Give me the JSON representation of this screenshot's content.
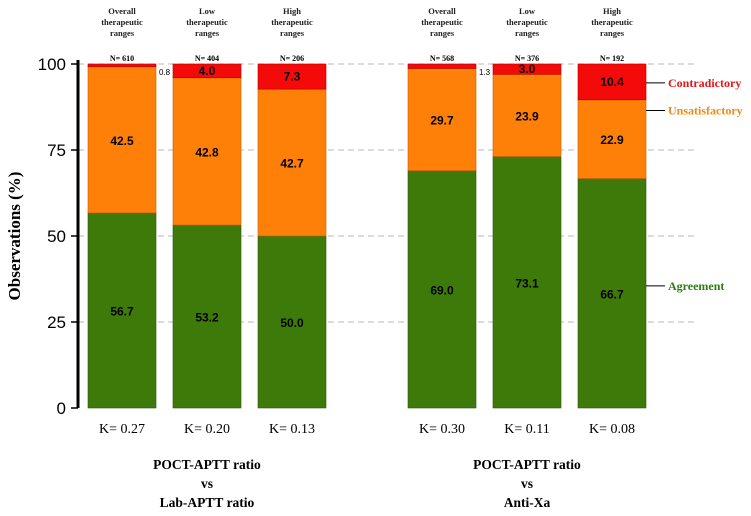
{
  "chart_data": {
    "type": "bar",
    "stacked": true,
    "title": "",
    "ylabel": "Observations (%)",
    "xlabel": "",
    "ylim": [
      0,
      100
    ],
    "yticks": [
      0,
      25,
      50,
      75,
      100
    ],
    "grid": "dashed horizontal at 25, 50, 75, 100",
    "colors": {
      "agreement": "#3d7a0a",
      "unsatisfactory": "#ff8008",
      "contradictory": "#f50a0a",
      "axis": "#000000",
      "grid": "#b8b8b8"
    },
    "legend": [
      {
        "key": "contradictory",
        "label": "Contradictory",
        "color": "#e8141a",
        "at_value": 94.5
      },
      {
        "key": "unsatisfactory",
        "label": "Unsatisfactory",
        "color": "#ee8a10",
        "at_value": 86.5
      },
      {
        "key": "agreement",
        "label": "Agreement",
        "color": "#2f7d10",
        "at_value": 35.5
      }
    ],
    "groups": [
      {
        "label_line1": "POCT-APTT ratio",
        "label_line2": "vs",
        "label_line3": "Lab-APTT ratio",
        "bars": [
          {
            "category_line1": "Overall",
            "category_line2": "therapeutic",
            "category_line3": "ranges",
            "n": "N= 610",
            "agreement": 56.7,
            "unsatisfactory": 42.5,
            "contradictory": 0.8,
            "label_agreement": "56.7",
            "label_unsatisfactory": "42.5",
            "label_contradictory": "0.8",
            "contradictory_label_outside": true,
            "kappa": "K= 0.27"
          },
          {
            "category_line1": "Low",
            "category_line2": "therapeutic",
            "category_line3": "ranges",
            "n": "N= 404",
            "agreement": 53.2,
            "unsatisfactory": 42.8,
            "contradictory": 4.0,
            "label_agreement": "53.2",
            "label_unsatisfactory": "42.8",
            "label_contradictory": "4.0",
            "contradictory_label_outside": false,
            "kappa": "K= 0.20"
          },
          {
            "category_line1": "High",
            "category_line2": "therapeutic",
            "category_line3": "ranges",
            "n": "N= 206",
            "agreement": 50.0,
            "unsatisfactory": 42.7,
            "contradictory": 7.3,
            "label_agreement": "50.0",
            "label_unsatisfactory": "42.7",
            "label_contradictory": "7.3",
            "contradictory_label_outside": false,
            "kappa": "K= 0.13"
          }
        ]
      },
      {
        "label_line1": "POCT-APTT ratio",
        "label_line2": "vs",
        "label_line3": "Anti-Xa",
        "bars": [
          {
            "category_line1": "Overall",
            "category_line2": "therapeutic",
            "category_line3": "ranges",
            "n": "N= 568",
            "agreement": 69.0,
            "unsatisfactory": 29.7,
            "contradictory": 1.3,
            "label_agreement": "69.0",
            "label_unsatisfactory": "29.7",
            "label_contradictory": "1.3",
            "contradictory_label_outside": true,
            "kappa": "K= 0.30"
          },
          {
            "category_line1": "Low",
            "category_line2": "therapeutic",
            "category_line3": "ranges",
            "n": "N= 376",
            "agreement": 73.1,
            "unsatisfactory": 23.9,
            "contradictory": 3.0,
            "label_agreement": "73.1",
            "label_unsatisfactory": "23.9",
            "label_contradictory": "3.0",
            "contradictory_label_outside": false,
            "kappa": "K= 0.11"
          },
          {
            "category_line1": "High",
            "category_line2": "therapeutic",
            "category_line3": "ranges",
            "n": "N= 192",
            "agreement": 66.7,
            "unsatisfactory": 22.9,
            "contradictory": 10.4,
            "label_agreement": "66.7",
            "label_unsatisfactory": "22.9",
            "label_contradictory": "10.4",
            "contradictory_label_outside": false,
            "kappa": "K= 0.08"
          }
        ]
      }
    ]
  }
}
